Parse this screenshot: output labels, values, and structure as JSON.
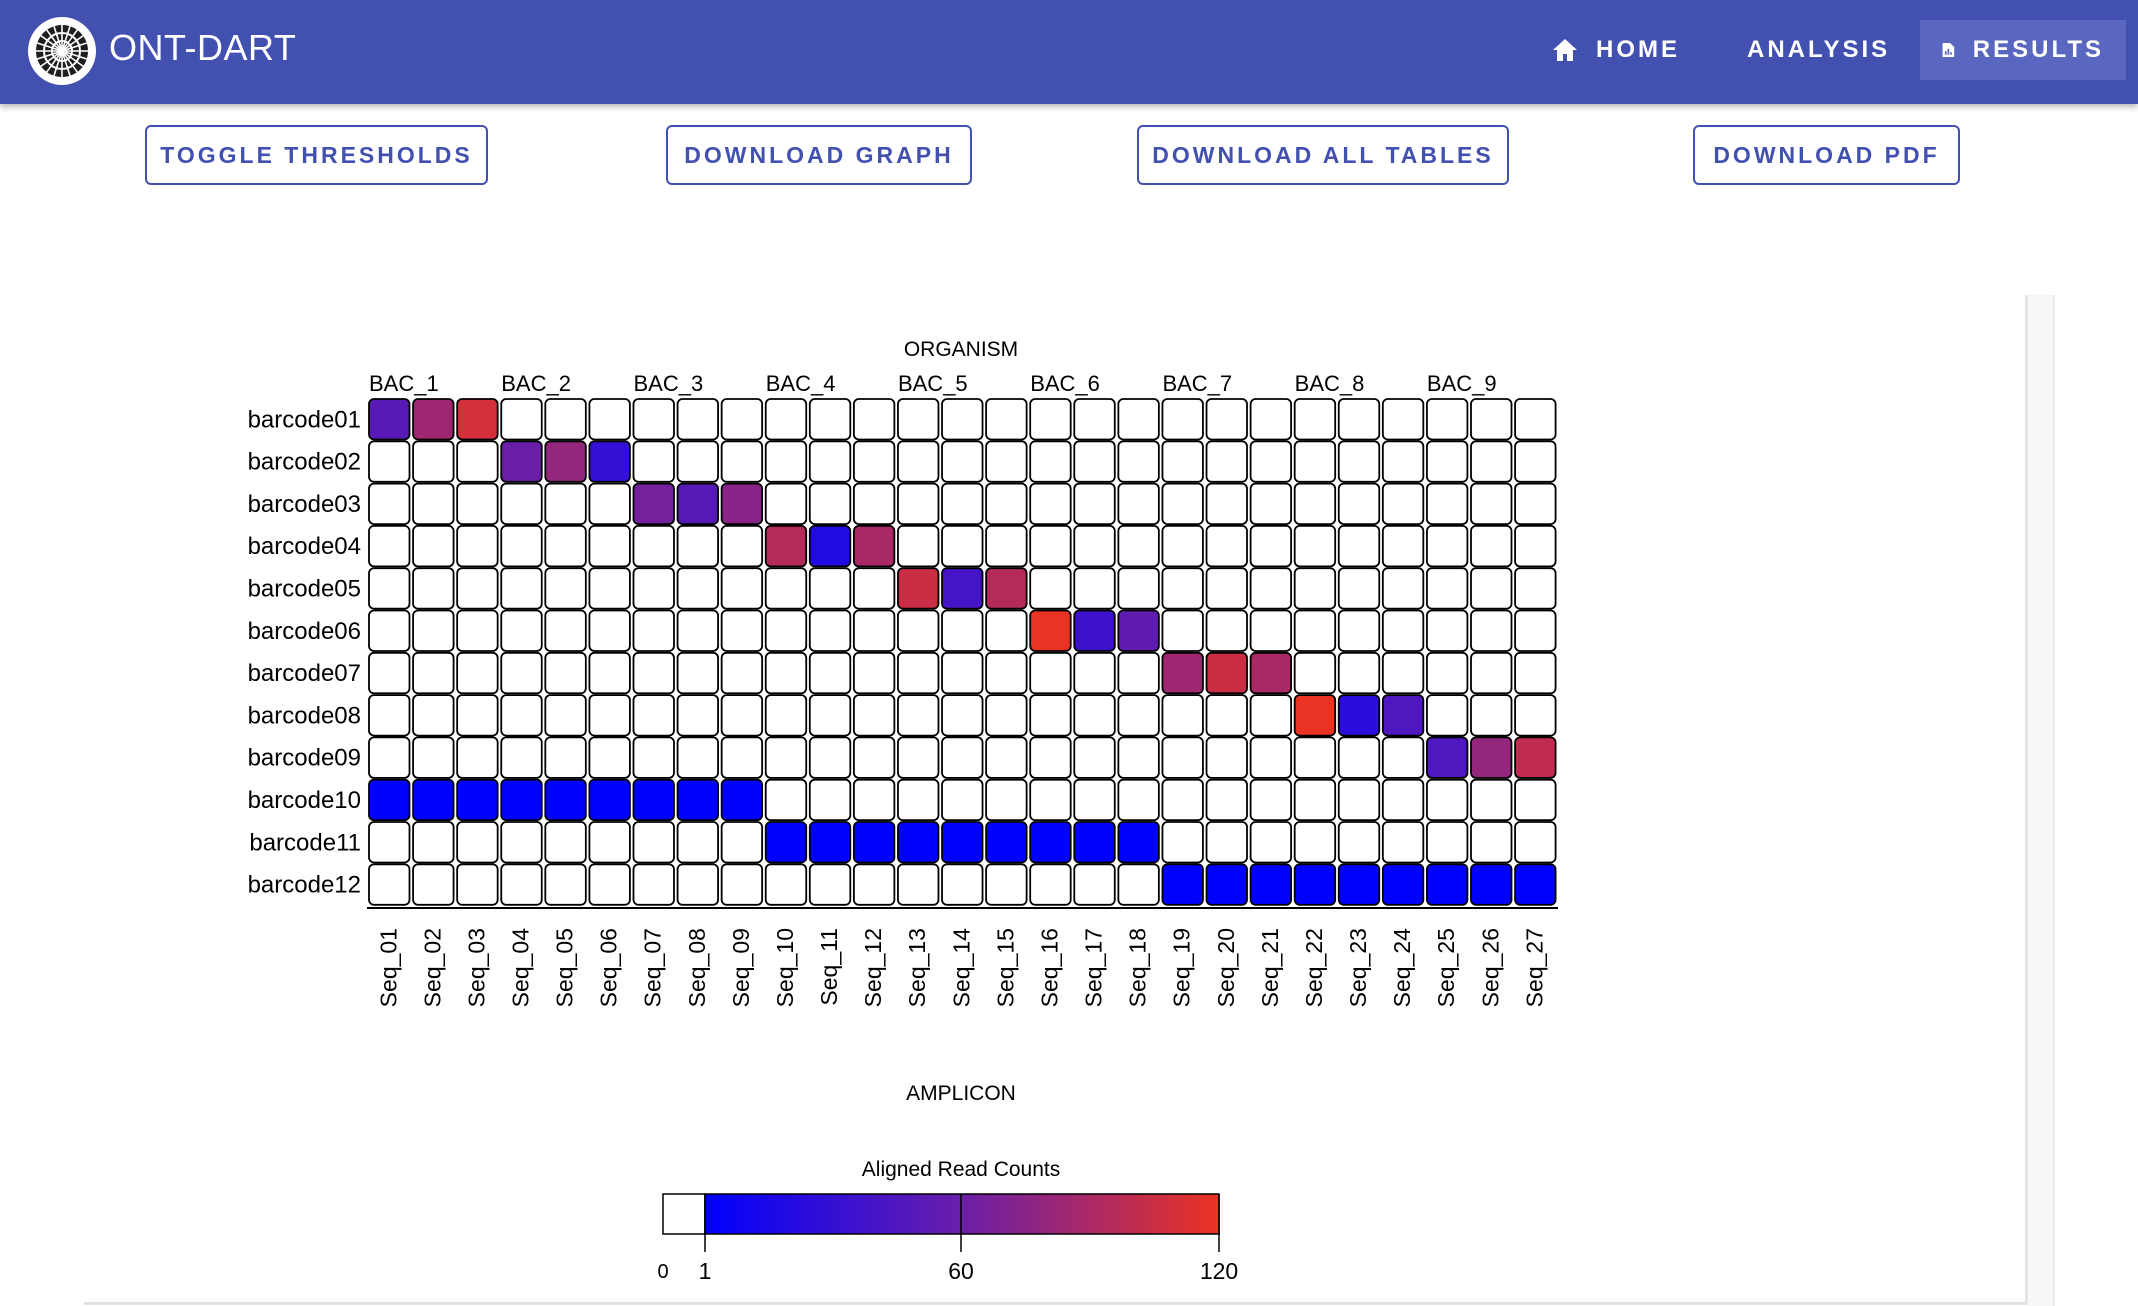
{
  "app": {
    "title": "ONT-DART",
    "logo_icon": "dartboard-icon"
  },
  "nav": [
    {
      "label": "HOME",
      "icon": "home-icon",
      "active": false
    },
    {
      "label": "ANALYSIS",
      "icon": "flask-icon",
      "active": false
    },
    {
      "label": "RESULTS",
      "icon": "report-icon",
      "active": true
    }
  ],
  "toolbar": {
    "toggle_label": "TOGGLE THRESHOLDS",
    "graph_label": "DOWNLOAD GRAPH",
    "tables_label": "DOWNLOAD ALL TABLES",
    "pdf_label": "DOWNLOAD PDF"
  },
  "colors": {
    "primary": "#4251b0",
    "active_nav": "#5a67c0",
    "scale_low": "#0000ff",
    "scale_mid": "#6a1fa8",
    "scale_high": "#ea3323",
    "zero": "#ffffff"
  },
  "chart_data": {
    "type": "heatmap",
    "title": "ORGANISM",
    "xlabel": "AMPLICON",
    "ylabel": "",
    "groups": [
      "BAC_1",
      "BAC_2",
      "BAC_3",
      "BAC_4",
      "BAC_5",
      "BAC_6",
      "BAC_7",
      "BAC_8",
      "BAC_9"
    ],
    "columns": [
      "Seq_01",
      "Seq_02",
      "Seq_03",
      "Seq_04",
      "Seq_05",
      "Seq_06",
      "Seq_07",
      "Seq_08",
      "Seq_09",
      "Seq_10",
      "Seq_11",
      "Seq_12",
      "Seq_13",
      "Seq_14",
      "Seq_15",
      "Seq_16",
      "Seq_17",
      "Seq_18",
      "Seq_19",
      "Seq_20",
      "Seq_21",
      "Seq_22",
      "Seq_23",
      "Seq_24",
      "Seq_25",
      "Seq_26",
      "Seq_27"
    ],
    "rows": [
      "barcode01",
      "barcode02",
      "barcode03",
      "barcode04",
      "barcode05",
      "barcode06",
      "barcode07",
      "barcode08",
      "barcode09",
      "barcode10",
      "barcode11",
      "barcode12"
    ],
    "values": [
      [
        50,
        85,
        110,
        0,
        0,
        0,
        0,
        0,
        0,
        0,
        0,
        0,
        0,
        0,
        0,
        0,
        0,
        0,
        0,
        0,
        0,
        0,
        0,
        0,
        0,
        0,
        0
      ],
      [
        0,
        0,
        0,
        60,
        80,
        30,
        0,
        0,
        0,
        0,
        0,
        0,
        0,
        0,
        0,
        0,
        0,
        0,
        0,
        0,
        0,
        0,
        0,
        0,
        0,
        0,
        0
      ],
      [
        0,
        0,
        0,
        0,
        0,
        0,
        65,
        50,
        75,
        0,
        0,
        0,
        0,
        0,
        0,
        0,
        0,
        0,
        0,
        0,
        0,
        0,
        0,
        0,
        0,
        0,
        0
      ],
      [
        0,
        0,
        0,
        0,
        0,
        0,
        0,
        0,
        0,
        95,
        20,
        90,
        0,
        0,
        0,
        0,
        0,
        0,
        0,
        0,
        0,
        0,
        0,
        0,
        0,
        0,
        0
      ],
      [
        0,
        0,
        0,
        0,
        0,
        0,
        0,
        0,
        0,
        0,
        0,
        0,
        105,
        40,
        95,
        0,
        0,
        0,
        0,
        0,
        0,
        0,
        0,
        0,
        0,
        0,
        0
      ],
      [
        0,
        0,
        0,
        0,
        0,
        0,
        0,
        0,
        0,
        0,
        0,
        0,
        0,
        0,
        0,
        120,
        35,
        55,
        0,
        0,
        0,
        0,
        0,
        0,
        0,
        0,
        0
      ],
      [
        0,
        0,
        0,
        0,
        0,
        0,
        0,
        0,
        0,
        0,
        0,
        0,
        0,
        0,
        0,
        0,
        0,
        0,
        85,
        105,
        90,
        0,
        0,
        0,
        0,
        0,
        0
      ],
      [
        0,
        0,
        0,
        0,
        0,
        0,
        0,
        0,
        0,
        0,
        0,
        0,
        0,
        0,
        0,
        0,
        0,
        0,
        0,
        0,
        0,
        120,
        25,
        45,
        0,
        0,
        0
      ],
      [
        0,
        0,
        0,
        0,
        0,
        0,
        0,
        0,
        0,
        0,
        0,
        0,
        0,
        0,
        0,
        0,
        0,
        0,
        0,
        0,
        0,
        0,
        0,
        0,
        45,
        80,
        100
      ],
      [
        1,
        1,
        1,
        1,
        1,
        1,
        1,
        1,
        1,
        0,
        0,
        0,
        0,
        0,
        0,
        0,
        0,
        0,
        0,
        0,
        0,
        0,
        0,
        0,
        0,
        0,
        0
      ],
      [
        0,
        0,
        0,
        0,
        0,
        0,
        0,
        0,
        0,
        1,
        1,
        1,
        1,
        1,
        1,
        1,
        1,
        1,
        0,
        0,
        0,
        0,
        0,
        0,
        0,
        0,
        0
      ],
      [
        0,
        0,
        0,
        0,
        0,
        0,
        0,
        0,
        0,
        0,
        0,
        0,
        0,
        0,
        0,
        0,
        0,
        0,
        1,
        1,
        1,
        1,
        1,
        1,
        1,
        1,
        1
      ]
    ],
    "legend": {
      "title": "Aligned Read Counts",
      "zero_label": "0",
      "min_label": "1",
      "mid_label": "60",
      "max_label": "120",
      "range": [
        1,
        120
      ]
    }
  }
}
